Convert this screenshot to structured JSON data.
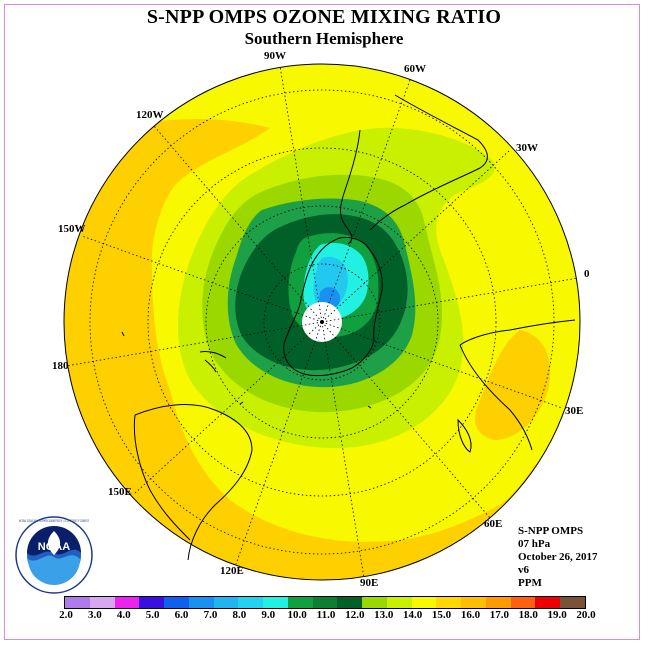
{
  "header": {
    "title": "S-NPP OMPS OZONE MIXING RATIO",
    "subtitle": "Southern Hemisphere"
  },
  "longitude_labels": {
    "lon_90w": "90W",
    "lon_60w": "60W",
    "lon_120w": "120W",
    "lon_30w": "30W",
    "lon_150w": "150W",
    "lon_0": "0",
    "lon_180": "180",
    "lon_30e": "30E",
    "lon_150e": "150E",
    "lon_60e": "60E",
    "lon_120e": "120E",
    "lon_90e": "90E"
  },
  "info": {
    "instrument": "S-NPP OMPS",
    "level": "07 hPa",
    "date": "October 26, 2017",
    "version": "v6",
    "units": "PPM"
  },
  "logo": {
    "text": "NOAA",
    "ring_text": "NATIONAL OCEANIC AND ATMOSPHERIC ADMINISTRATION · U.S. DEPARTMENT OF COMMERCE",
    "icon": "noaa-logo-icon"
  },
  "colorbar": {
    "colors": [
      "#b07ae8",
      "#d7a8f0",
      "#ee22ee",
      "#3a10e0",
      "#1060f0",
      "#1a90f0",
      "#20b4f0",
      "#22d2f0",
      "#22f0e0",
      "#10a040",
      "#0a8030",
      "#006028",
      "#9ad800",
      "#c8f000",
      "#f8f800",
      "#ffd800",
      "#ffbe00",
      "#ff9a00",
      "#ff6010",
      "#ee0000",
      "#7a5238"
    ],
    "labels": [
      "2.0",
      "3.0",
      "4.0",
      "5.0",
      "6.0",
      "7.0",
      "8.0",
      "9.0",
      "10.0",
      "11.0",
      "12.0",
      "13.0",
      "14.0",
      "15.0",
      "16.0",
      "17.0",
      "18.0",
      "19.0",
      "20.0"
    ]
  }
}
